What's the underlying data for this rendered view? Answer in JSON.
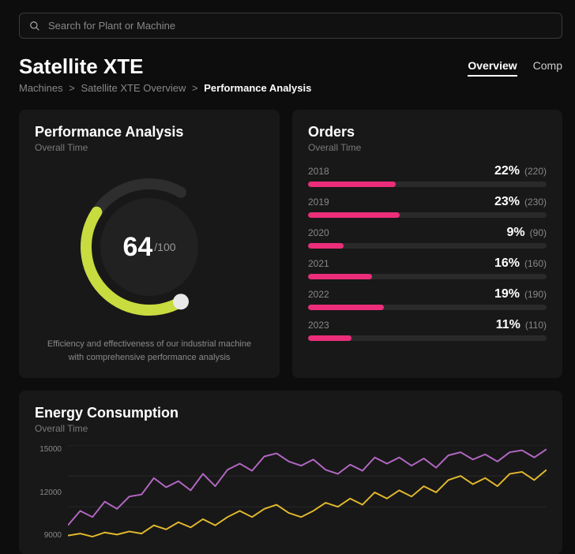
{
  "search": {
    "placeholder": "Search for Plant or Machine"
  },
  "header": {
    "title": "Satellite XTE",
    "breadcrumbs": [
      "Machines",
      "Satellite XTE Overview",
      "Performance Analysis"
    ],
    "tabs": [
      {
        "label": "Overview",
        "active": true
      },
      {
        "label": "Comp",
        "active": false
      }
    ]
  },
  "performance": {
    "title": "Performance Analysis",
    "subtitle": "Overall Time",
    "value": 64,
    "max": 100,
    "value_label": "64",
    "max_label": "/100",
    "description": "Efficiency and effectiveness of our industrial machine with comprehensive performance analysis",
    "gauge": {
      "start_angle_deg": 150,
      "sweep_deg": 240,
      "track_color": "#2e2e2e",
      "fill_color": "#c8db3f",
      "knob_color": "#e8e8e8",
      "inner_bg": "#212121",
      "stroke_width": 14
    }
  },
  "orders": {
    "title": "Orders",
    "subtitle": "Overall Time",
    "bar_color": "#ec2e7a",
    "track_color": "#2a2a2a",
    "max_pct": 60,
    "rows": [
      {
        "year": "2018",
        "pct": 22,
        "pct_label": "22%",
        "count": "(220)"
      },
      {
        "year": "2019",
        "pct": 23,
        "pct_label": "23%",
        "count": "(230)"
      },
      {
        "year": "2020",
        "pct": 9,
        "pct_label": "9%",
        "count": "(90)"
      },
      {
        "year": "2021",
        "pct": 16,
        "pct_label": "16%",
        "count": "(160)"
      },
      {
        "year": "2022",
        "pct": 19,
        "pct_label": "19%",
        "count": "(190)"
      },
      {
        "year": "2023",
        "pct": 11,
        "pct_label": "11%",
        "count": "(110)"
      }
    ]
  },
  "energy": {
    "title": "Energy Consumption",
    "subtitle": "Overall Time",
    "ylim": [
      6000,
      15000
    ],
    "yticks": [
      15000,
      12000,
      9000
    ],
    "ytick_labels": [
      "15000",
      "12000",
      "9000"
    ],
    "grid_color": "#2a2a2a",
    "series": [
      {
        "name": "purple",
        "color": "#b268c3",
        "stroke_width": 2,
        "points": [
          7200,
          8600,
          8000,
          9500,
          8800,
          10000,
          10200,
          11800,
          10900,
          11500,
          10600,
          12200,
          11000,
          12600,
          13200,
          12500,
          13900,
          14200,
          13400,
          13000,
          13600,
          12600,
          12200,
          13100,
          12500,
          13800,
          13200,
          13800,
          13000,
          13700,
          12800,
          14000,
          14300,
          13600,
          14100,
          13400,
          14300,
          14500,
          13800,
          14600
        ]
      },
      {
        "name": "yellow",
        "color": "#e2b92c",
        "stroke_width": 2,
        "points": [
          6200,
          6400,
          6100,
          6500,
          6300,
          6600,
          6400,
          7200,
          6800,
          7500,
          7000,
          7800,
          7200,
          8000,
          8600,
          8000,
          8800,
          9200,
          8400,
          8000,
          8600,
          9400,
          9000,
          9800,
          9200,
          10400,
          9800,
          10600,
          10000,
          11000,
          10400,
          11600,
          12000,
          11200,
          11800,
          11000,
          12200,
          12400,
          11600,
          12600
        ]
      }
    ]
  }
}
